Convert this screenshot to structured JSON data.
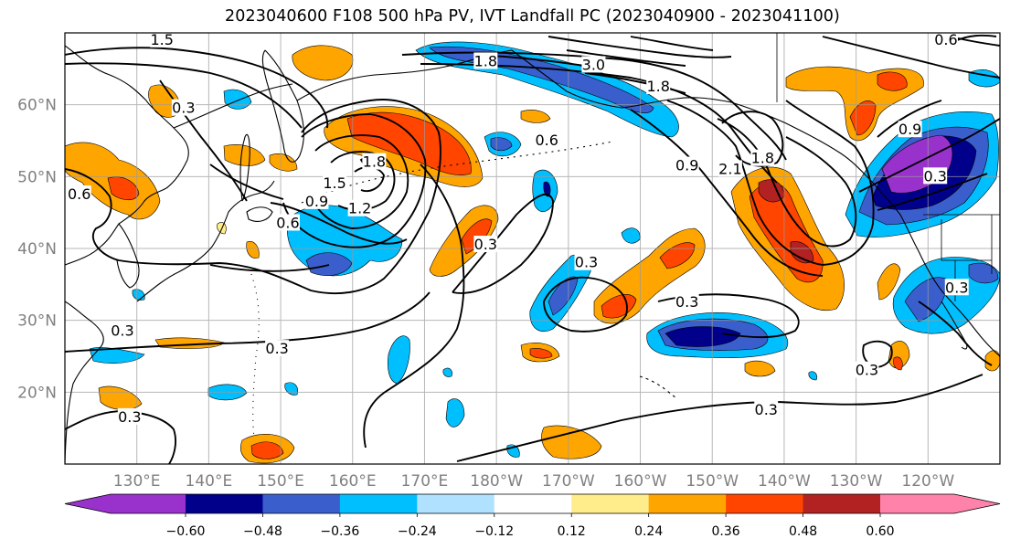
{
  "title": "2023040600 F108 500 hPa PV, IVT Landfall PC (2023040900 - 2023041100)",
  "map": {
    "projection": "plate carree",
    "lon_range": [
      120,
      250
    ],
    "lat_range": [
      10,
      70
    ],
    "gridlines": true,
    "lat_labels": [
      {
        "lat": 60,
        "text": "60°N"
      },
      {
        "lat": 50,
        "text": "50°N"
      },
      {
        "lat": 40,
        "text": "40°N"
      },
      {
        "lat": 30,
        "text": "30°N"
      },
      {
        "lat": 20,
        "text": "20°N"
      }
    ],
    "lon_labels": [
      {
        "lon": 130,
        "text": "130°E"
      },
      {
        "lon": 140,
        "text": "140°E"
      },
      {
        "lon": 150,
        "text": "150°E"
      },
      {
        "lon": 160,
        "text": "160°E"
      },
      {
        "lon": 170,
        "text": "170°E"
      },
      {
        "lon": 180,
        "text": "180°W"
      },
      {
        "lon": 190,
        "text": "170°W"
      },
      {
        "lon": 200,
        "text": "160°W"
      },
      {
        "lon": 210,
        "text": "150°W"
      },
      {
        "lon": 220,
        "text": "140°W"
      },
      {
        "lon": 230,
        "text": "130°W"
      },
      {
        "lon": 240,
        "text": "120°W"
      }
    ],
    "contour_labels": [
      {
        "text": "1.5",
        "lon": 133.5,
        "lat": 69.0
      },
      {
        "text": "0.3",
        "lon": 136.5,
        "lat": 59.5
      },
      {
        "text": "0.6",
        "lon": 122.0,
        "lat": 47.5
      },
      {
        "text": "1.5",
        "lon": 157.5,
        "lat": 49.0
      },
      {
        "text": "1.8",
        "lon": 163.0,
        "lat": 52.0
      },
      {
        "text": "0.9",
        "lon": 155.0,
        "lat": 46.5
      },
      {
        "text": "1.2",
        "lon": 161.0,
        "lat": 45.5
      },
      {
        "text": "0.6",
        "lon": 151.0,
        "lat": 43.5
      },
      {
        "text": "1.8",
        "lon": 178.5,
        "lat": 66.0
      },
      {
        "text": "3.0",
        "lon": 193.5,
        "lat": 65.5
      },
      {
        "text": "1.8",
        "lon": 202.5,
        "lat": 62.5
      },
      {
        "text": "0.6",
        "lon": 187.0,
        "lat": 55.0
      },
      {
        "text": "0.9",
        "lon": 206.5,
        "lat": 51.5
      },
      {
        "text": "2.1",
        "lon": 212.5,
        "lat": 51.0
      },
      {
        "text": "1.8",
        "lon": 217.0,
        "lat": 52.5
      },
      {
        "text": "0.3",
        "lon": 178.5,
        "lat": 40.5
      },
      {
        "text": "0.3",
        "lon": 192.5,
        "lat": 38.0
      },
      {
        "text": "0.3",
        "lon": 206.5,
        "lat": 32.5
      },
      {
        "text": "0.3",
        "lon": 128.0,
        "lat": 28.5
      },
      {
        "text": "0.3",
        "lon": 149.5,
        "lat": 26.0
      },
      {
        "text": "0.3",
        "lon": 129.0,
        "lat": 16.5
      },
      {
        "text": "0.3",
        "lon": 217.5,
        "lat": 17.5
      },
      {
        "text": "0.3",
        "lon": 231.5,
        "lat": 23.0
      },
      {
        "text": "0.9",
        "lon": 237.5,
        "lat": 56.5
      },
      {
        "text": "0.3",
        "lon": 241.0,
        "lat": 50.0
      },
      {
        "text": "0.3",
        "lon": 244.0,
        "lat": 34.5
      },
      {
        "text": "0.6",
        "lon": 242.5,
        "lat": 69.0
      }
    ]
  },
  "colorbar": {
    "colors": [
      "#9932cc",
      "#00008b",
      "#3a5fcd",
      "#00bfff",
      "#b0e2ff",
      "#ffffff",
      "#ffec8b",
      "#ffa500",
      "#ff4500",
      "#b22222",
      "#ff82ab"
    ],
    "tick_labels": [
      "−0.60",
      "−0.48",
      "−0.36",
      "−0.24",
      "−0.12",
      "0.12",
      "0.24",
      "0.36",
      "0.48",
      "0.60"
    ],
    "extend": "both"
  }
}
